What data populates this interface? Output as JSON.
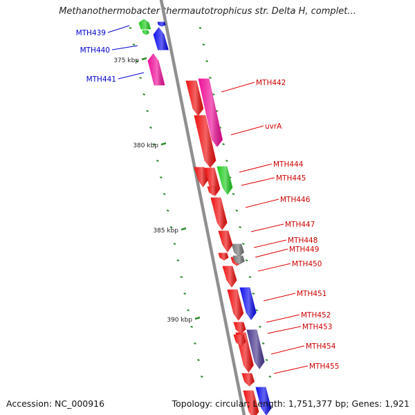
{
  "title": "Methanothermobacter thermautotrophicus str. Delta H, complet...",
  "footer": {
    "accession_label": "Accession:",
    "accession": "NC_000916",
    "topology_text": "Topology: circular; Length: 1,751,377 bp; Genes: 1,921"
  },
  "colors": {
    "backbone": "#8f8f8f",
    "tick": "#2e8b2e",
    "label_blue": "#0000cc",
    "label_red": "#cc0000",
    "leader_blue": "#0000cc",
    "leader_red": "#e00000"
  },
  "scale": {
    "kbp_labels": [
      "375 kbp",
      "380 kbp",
      "385 kbp",
      "390 kbp"
    ],
    "kbp_values": [
      375,
      380,
      385,
      390
    ]
  },
  "genes": [
    {
      "name": "MTH439",
      "strand": "forward",
      "color": "#22cc22"
    },
    {
      "name": "MTH440",
      "strand": "forward",
      "color": "#1010ee"
    },
    {
      "name": "MTH441",
      "strand": "forward",
      "color": "#ee1199"
    },
    {
      "name": "MTH442",
      "strand": "reverse",
      "color": "#ee1111"
    },
    {
      "name": "uvrA",
      "strand": "reverse",
      "color": "#ee1199"
    },
    {
      "name": "MTH444",
      "strand": "reverse",
      "color": "#ee1111"
    },
    {
      "name": "MTH445",
      "strand": "reverse",
      "color": "#22cc22"
    },
    {
      "name": "MTH446",
      "strand": "reverse",
      "color": "#ee1111"
    },
    {
      "name": "MTH447",
      "strand": "reverse",
      "color": "#ee1111"
    },
    {
      "name": "MTH448",
      "strand": "reverse",
      "color": "#777777"
    },
    {
      "name": "MTH449",
      "strand": "reverse",
      "color": "#ee1111"
    },
    {
      "name": "MTH450",
      "strand": "reverse",
      "color": "#ee1111"
    },
    {
      "name": "MTH451",
      "strand": "reverse",
      "color": "#1010ee"
    },
    {
      "name": "MTH452",
      "strand": "reverse",
      "color": "#ee1111"
    },
    {
      "name": "MTH453",
      "strand": "reverse",
      "color": "#ee1111"
    },
    {
      "name": "MTH454",
      "strand": "reverse",
      "color": "#4c3a90"
    },
    {
      "name": "MTH455",
      "strand": "reverse",
      "color": "#ee1111"
    }
  ]
}
